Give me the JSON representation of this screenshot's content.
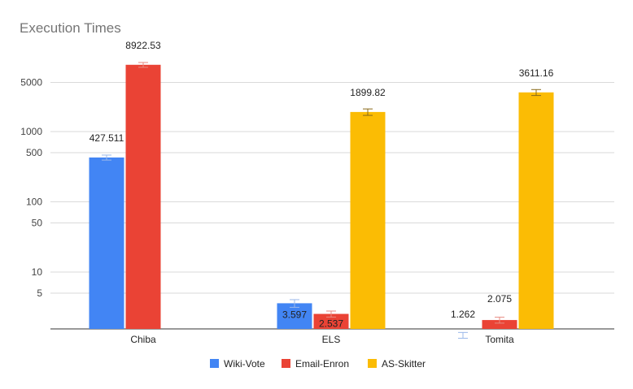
{
  "chart_data": {
    "type": "bar",
    "title": "Execution Times",
    "xlabel": "",
    "ylabel": "",
    "yscale": "log",
    "ylim": [
      1,
      20000
    ],
    "yticks": [
      5,
      10,
      50,
      100,
      500,
      1000,
      5000
    ],
    "grid": true,
    "legend_position": "bottom",
    "categories": [
      "Chiba",
      "ELS",
      "Tomita"
    ],
    "series": [
      {
        "name": "Wiki-Vote",
        "color": "#4285f4",
        "values": [
          427.511,
          3.597,
          1.262
        ],
        "errors": [
          35,
          0.45,
          0.12
        ],
        "labels": [
          "427.511",
          "3.597",
          "1.262"
        ]
      },
      {
        "name": "Email-Enron",
        "color": "#ea4335",
        "values": [
          8922.53,
          2.537,
          2.075
        ],
        "errors": [
          700,
          0.25,
          0.2
        ],
        "labels": [
          "8922.53",
          "2.537",
          "2.075"
        ]
      },
      {
        "name": "AS-Skitter",
        "color": "#fbbc04",
        "values": [
          null,
          1899.82,
          3611.16
        ],
        "errors": [
          null,
          200,
          350
        ],
        "labels": [
          "",
          "1899.82",
          "3611.16"
        ]
      }
    ]
  }
}
